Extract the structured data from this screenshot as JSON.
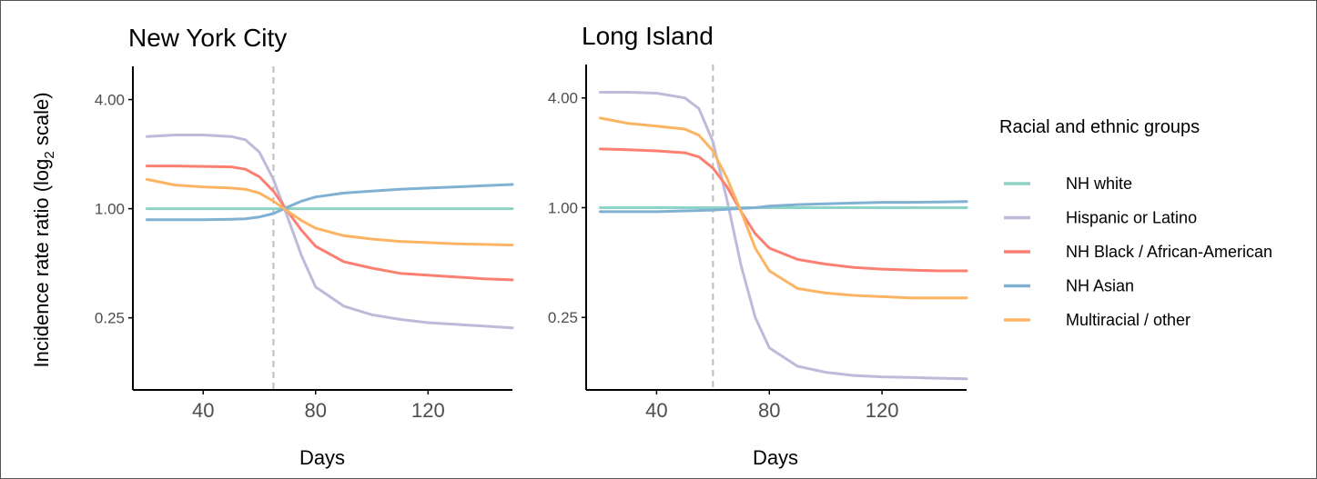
{
  "colors": {
    "NH white": "#8dd3c7",
    "Hispanic or Latino": "#bebada",
    "NH Black / African-American": "#fb8072",
    "NH Asian": "#80b1d3",
    "Multiracial / other": "#fdb462",
    "axis": "#000000",
    "tick_text": "#4d4d4d",
    "vline": "#bdbdbd"
  },
  "y_axis_label": {
    "prefix": "Incidence rate ratio (log",
    "subscript": "2",
    "suffix": " scale)"
  },
  "x_axis_label": "Days",
  "legend": {
    "title": "Racial and ethnic groups",
    "position": "right",
    "entries": [
      "NH white",
      "Hispanic or Latino",
      "NH Black / African-American",
      "NH Asian",
      "Multiracial / other"
    ]
  },
  "chart_data": [
    {
      "type": "line",
      "title": "New York City",
      "xlabel": "Days",
      "ylabel": "Incidence rate ratio (log2 scale)",
      "y_scale": "log2",
      "xlim": [
        15,
        150
      ],
      "ylim": [
        0.1,
        6.1
      ],
      "x_ticks": [
        40,
        80,
        120
      ],
      "x_tick_labels": [
        "40",
        "80",
        "120"
      ],
      "y_ticks": [
        0.25,
        1,
        4
      ],
      "y_tick_labels": [
        "0.25",
        "1.00",
        "4.00"
      ],
      "vline_x": 65,
      "grid": false,
      "x": [
        20,
        30,
        40,
        50,
        55,
        60,
        65,
        70,
        75,
        80,
        90,
        100,
        110,
        120,
        130,
        140,
        150
      ],
      "series": [
        {
          "name": "NH white",
          "values": [
            1,
            1,
            1,
            1,
            1,
            1,
            1,
            1,
            1,
            1,
            1,
            1,
            1,
            1,
            1,
            1,
            1
          ]
        },
        {
          "name": "Hispanic or Latino",
          "values": [
            2.5,
            2.55,
            2.55,
            2.5,
            2.4,
            2.05,
            1.45,
            0.9,
            0.55,
            0.37,
            0.29,
            0.26,
            0.245,
            0.235,
            0.23,
            0.225,
            0.22
          ]
        },
        {
          "name": "NH Black / African-American",
          "values": [
            1.72,
            1.72,
            1.71,
            1.7,
            1.65,
            1.5,
            1.25,
            0.97,
            0.76,
            0.62,
            0.51,
            0.47,
            0.44,
            0.43,
            0.42,
            0.41,
            0.405
          ]
        },
        {
          "name": "NH Asian",
          "values": [
            0.87,
            0.87,
            0.87,
            0.875,
            0.88,
            0.9,
            0.94,
            1.02,
            1.1,
            1.16,
            1.22,
            1.25,
            1.28,
            1.3,
            1.32,
            1.34,
            1.36
          ]
        },
        {
          "name": "Multiracial / other",
          "values": [
            1.45,
            1.35,
            1.32,
            1.3,
            1.28,
            1.22,
            1.1,
            0.97,
            0.86,
            0.78,
            0.71,
            0.68,
            0.66,
            0.65,
            0.64,
            0.635,
            0.63
          ]
        }
      ]
    },
    {
      "type": "line",
      "title": "Long Island",
      "xlabel": "Days",
      "ylabel": "",
      "y_scale": "log2",
      "xlim": [
        15,
        150
      ],
      "ylim": [
        0.1,
        6.1
      ],
      "x_ticks": [
        40,
        80,
        120
      ],
      "x_tick_labels": [
        "40",
        "80",
        "120"
      ],
      "y_ticks": [
        0.25,
        1,
        4
      ],
      "y_tick_labels": [
        "0.25",
        "1.00",
        "4.00"
      ],
      "vline_x": 60,
      "grid": false,
      "x": [
        20,
        30,
        40,
        50,
        55,
        60,
        65,
        70,
        75,
        80,
        90,
        100,
        110,
        120,
        130,
        140,
        150
      ],
      "series": [
        {
          "name": "NH white",
          "values": [
            1,
            1,
            1,
            1,
            1,
            1,
            1,
            1,
            1,
            1,
            1,
            1,
            1,
            1,
            1,
            1,
            1
          ]
        },
        {
          "name": "Hispanic or Latino",
          "values": [
            4.3,
            4.3,
            4.25,
            4.0,
            3.5,
            2.3,
            1.1,
            0.48,
            0.25,
            0.17,
            0.135,
            0.125,
            0.12,
            0.118,
            0.117,
            0.116,
            0.115
          ]
        },
        {
          "name": "NH Black / African-American",
          "values": [
            2.1,
            2.08,
            2.05,
            2.0,
            1.9,
            1.65,
            1.3,
            0.95,
            0.72,
            0.6,
            0.52,
            0.49,
            0.47,
            0.46,
            0.455,
            0.45,
            0.45
          ]
        },
        {
          "name": "NH Asian",
          "values": [
            0.95,
            0.95,
            0.95,
            0.96,
            0.965,
            0.97,
            0.98,
            0.99,
            1.0,
            1.02,
            1.04,
            1.05,
            1.06,
            1.07,
            1.07,
            1.075,
            1.08
          ]
        },
        {
          "name": "Multiracial / other",
          "values": [
            3.1,
            2.9,
            2.8,
            2.7,
            2.5,
            2.05,
            1.45,
            0.95,
            0.6,
            0.45,
            0.36,
            0.34,
            0.33,
            0.325,
            0.32,
            0.32,
            0.32
          ]
        }
      ]
    }
  ]
}
